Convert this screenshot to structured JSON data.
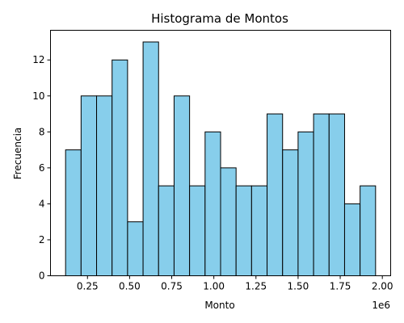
{
  "chart_data": {
    "type": "bar",
    "title": "Histograma de Montos",
    "xlabel": "Monto",
    "ylabel": "Frecuencia",
    "x_offset_text": "1e6",
    "bin_edges": [
      0.12,
      0.212,
      0.304,
      0.396,
      0.488,
      0.58,
      0.672,
      0.764,
      0.856,
      0.948,
      1.04,
      1.132,
      1.224,
      1.316,
      1.408,
      1.5,
      1.592,
      1.684,
      1.776,
      1.868,
      1.96
    ],
    "counts": [
      7,
      10,
      10,
      12,
      3,
      13,
      5,
      10,
      5,
      8,
      6,
      5,
      5,
      9,
      7,
      8,
      9,
      9,
      4,
      5
    ],
    "xlim": [
      0.0305,
      2.0495
    ],
    "ylim": [
      0,
      13.65
    ],
    "x_ticks": [
      0.25,
      0.5,
      0.75,
      1.0,
      1.25,
      1.5,
      1.75,
      2.0
    ],
    "x_tick_labels": [
      "0.25",
      "0.50",
      "0.75",
      "1.00",
      "1.25",
      "1.50",
      "1.75",
      "2.00"
    ],
    "y_ticks": [
      0,
      2,
      4,
      6,
      8,
      10,
      12
    ],
    "y_tick_labels": [
      "0",
      "2",
      "4",
      "6",
      "8",
      "10",
      "12"
    ],
    "grid": false,
    "bar_color": "#87ceeb",
    "edge_color": "#000000"
  }
}
